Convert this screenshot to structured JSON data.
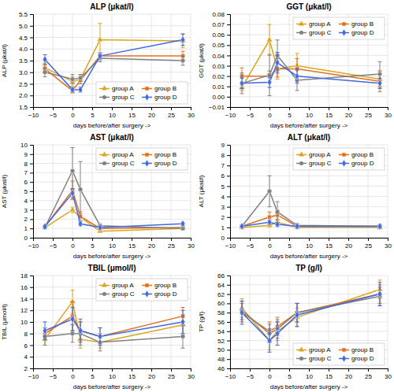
{
  "chart_data": [
    {
      "type": "line",
      "title": "ALP (μkat/l)",
      "x_label": "days before/after surgery ->",
      "y_label": "ALP (μkat/l)",
      "x": [
        -7,
        0,
        2,
        7,
        28
      ],
      "xlim": [
        -10,
        30
      ],
      "xticks": [
        {
          "value": -10,
          "label": "−10"
        },
        {
          "value": -5,
          "label": "−5"
        },
        0,
        5,
        10,
        15,
        20,
        25,
        30
      ],
      "ylim": [
        1.5,
        5.5
      ],
      "yticks": [
        1.5,
        {
          "value": 2.0,
          "label": "2.0"
        },
        2.5,
        {
          "value": 3.0,
          "label": "3.0"
        },
        3.5,
        {
          "value": 4.0,
          "label": "4.0"
        },
        4.5,
        {
          "value": 5.0,
          "label": "5.0"
        },
        5.5
      ],
      "grid": true,
      "legend": "lower right",
      "series": [
        {
          "name": "group A",
          "color": "#DAA520",
          "marker": "triangle",
          "values": [
            3.2,
            2.6,
            2.7,
            4.4,
            4.35
          ],
          "errors": [
            0.2,
            0.2,
            0.2,
            0.7,
            0.3
          ]
        },
        {
          "name": "group B",
          "color": "#E07020",
          "marker": "square",
          "values": [
            3.15,
            2.2,
            2.65,
            3.7,
            3.7
          ],
          "errors": [
            0.15,
            0.1,
            0.15,
            0.15,
            0.2
          ]
        },
        {
          "name": "group C",
          "color": "#808080",
          "marker": "circle",
          "values": [
            3.0,
            2.7,
            2.75,
            3.6,
            3.5
          ],
          "errors": [
            0.2,
            0.2,
            0.15,
            0.15,
            0.2
          ]
        },
        {
          "name": "group D",
          "color": "#4169E1",
          "marker": "diamond",
          "values": [
            3.55,
            2.25,
            2.25,
            3.7,
            4.4
          ],
          "errors": [
            0.2,
            0.1,
            0.1,
            0.1,
            0.25
          ]
        }
      ]
    },
    {
      "type": "line",
      "title": "GGT (μkat/l)",
      "x_label": "days before/after surgery ->",
      "y_label": "GGT (μkat/l)",
      "x": [
        -7,
        0,
        2,
        7,
        28
      ],
      "xlim": [
        -10,
        30
      ],
      "xticks": [
        {
          "value": -10,
          "label": "−10"
        },
        {
          "value": -5,
          "label": "−5"
        },
        0,
        5,
        10,
        15,
        20,
        25,
        30
      ],
      "ylim": [
        -0.01,
        0.08
      ],
      "yticks": [
        {
          "value": -0.01,
          "label": "−0.01"
        },
        {
          "value": 0,
          "label": "0.00"
        },
        0.01,
        0.02,
        0.03,
        0.04,
        0.05,
        0.06,
        0.07,
        0.08
      ],
      "grid": true,
      "legend": "upper right",
      "series": [
        {
          "name": "group A",
          "color": "#DAA520",
          "marker": "triangle",
          "values": [
            0.009,
            0.055,
            0.027,
            0.03,
            0.017
          ],
          "errors": [
            0.003,
            0.015,
            0.01,
            0.012,
            0.008
          ]
        },
        {
          "name": "group B",
          "color": "#E07020",
          "marker": "square",
          "values": [
            0.02,
            0.02,
            0.027,
            0.027,
            0.015
          ],
          "errors": [
            0.008,
            0.005,
            0.008,
            0.01,
            0.01
          ]
        },
        {
          "name": "group C",
          "color": "#808080",
          "marker": "circle",
          "values": [
            0.013,
            0.021,
            0.04,
            0.016,
            0.022
          ],
          "errors": [
            0.01,
            0.02,
            0.015,
            0.01,
            0.012
          ]
        },
        {
          "name": "group D",
          "color": "#4169E1",
          "marker": "diamond",
          "values": [
            0.013,
            0.014,
            0.033,
            0.02,
            0.013
          ],
          "errors": [
            0.005,
            0.005,
            0.01,
            0.007,
            0.005
          ]
        }
      ]
    },
    {
      "type": "line",
      "title": "AST (μkat/l)",
      "x_label": "days before/after surgery ->",
      "y_label": "AST (μkat/l)",
      "x": [
        -7,
        0,
        2,
        7,
        28
      ],
      "xlim": [
        -10,
        30
      ],
      "xticks": [
        {
          "value": -10,
          "label": "−10"
        },
        {
          "value": -5,
          "label": "−5"
        },
        0,
        5,
        10,
        15,
        20,
        25,
        30
      ],
      "ylim": [
        0,
        10
      ],
      "yticks": [
        0,
        1,
        2,
        3,
        4,
        5,
        6,
        7,
        8,
        9,
        10
      ],
      "grid": true,
      "legend": "upper right",
      "series": [
        {
          "name": "group A",
          "color": "#DAA520",
          "marker": "triangle",
          "values": [
            1.1,
            3.0,
            2.2,
            0.7,
            1.0
          ],
          "errors": [
            0.1,
            0.3,
            0.4,
            0.15,
            0.15
          ]
        },
        {
          "name": "group B",
          "color": "#E07020",
          "marker": "square",
          "values": [
            1.2,
            5.1,
            2.3,
            1.0,
            1.1
          ],
          "errors": [
            0.1,
            1.0,
            0.5,
            0.1,
            0.1
          ]
        },
        {
          "name": "group C",
          "color": "#808080",
          "marker": "circle",
          "values": [
            1.1,
            7.2,
            5.2,
            1.3,
            1.0
          ],
          "errors": [
            0.1,
            2.5,
            3.0,
            0.2,
            0.15
          ]
        },
        {
          "name": "group D",
          "color": "#4169E1",
          "marker": "diamond",
          "values": [
            1.2,
            4.8,
            1.5,
            1.1,
            1.5
          ],
          "errors": [
            0.1,
            0.5,
            0.2,
            0.1,
            0.15
          ]
        }
      ]
    },
    {
      "type": "line",
      "title": "ALT (μkat/l)",
      "x_label": "days before/after surgery ->",
      "y_label": "ALT (μkat/l)",
      "x": [
        -7,
        0,
        2,
        7,
        28
      ],
      "xlim": [
        -10,
        30
      ],
      "xticks": [
        {
          "value": -10,
          "label": "−10"
        },
        {
          "value": -5,
          "label": "−5"
        },
        0,
        5,
        10,
        15,
        20,
        25,
        30
      ],
      "ylim": [
        0,
        9
      ],
      "yticks": [
        0,
        1,
        2,
        3,
        4,
        5,
        6,
        7,
        8,
        9
      ],
      "grid": true,
      "legend": "upper right",
      "series": [
        {
          "name": "group A",
          "color": "#DAA520",
          "marker": "triangle",
          "values": [
            1.0,
            1.2,
            1.5,
            1.0,
            1.0
          ],
          "errors": [
            0.1,
            0.2,
            0.3,
            0.1,
            0.15
          ]
        },
        {
          "name": "group B",
          "color": "#E07020",
          "marker": "square",
          "values": [
            1.1,
            2.0,
            2.2,
            1.1,
            1.1
          ],
          "errors": [
            0.1,
            0.5,
            0.5,
            0.1,
            0.15
          ]
        },
        {
          "name": "group C",
          "color": "#808080",
          "marker": "circle",
          "values": [
            1.1,
            4.5,
            2.5,
            1.2,
            1.1
          ],
          "errors": [
            0.1,
            1.5,
            1.0,
            0.2,
            0.2
          ]
        },
        {
          "name": "group D",
          "color": "#4169E1",
          "marker": "diamond",
          "values": [
            1.1,
            1.5,
            1.3,
            1.1,
            1.1
          ],
          "errors": [
            0.1,
            0.2,
            0.2,
            0.1,
            0.1
          ]
        }
      ]
    },
    {
      "type": "line",
      "title": "TBIL (μmol/l)",
      "x_label": "days before/after surgery ->",
      "y_label": "TBIL (μmol/l)",
      "x": [
        -7,
        0,
        2,
        7,
        28
      ],
      "xlim": [
        -10,
        30
      ],
      "xticks": [
        {
          "value": -10,
          "label": "−10"
        },
        {
          "value": -5,
          "label": "−5"
        },
        0,
        5,
        10,
        15,
        20,
        25,
        30
      ],
      "ylim": [
        2,
        18
      ],
      "yticks": [
        2,
        4,
        6,
        8,
        10,
        12,
        14,
        16,
        18
      ],
      "grid": true,
      "legend": "upper right",
      "series": [
        {
          "name": "group A",
          "color": "#DAA520",
          "marker": "triangle",
          "values": [
            7.0,
            13.5,
            7.0,
            6.5,
            9.5
          ],
          "errors": [
            1.0,
            2.0,
            1.5,
            1.0,
            1.5
          ]
        },
        {
          "name": "group B",
          "color": "#E07020",
          "marker": "square",
          "values": [
            8.0,
            11.0,
            8.5,
            7.5,
            11.0
          ],
          "errors": [
            1.0,
            2.5,
            1.5,
            1.5,
            1.5
          ]
        },
        {
          "name": "group C",
          "color": "#808080",
          "marker": "circle",
          "values": [
            7.5,
            8.0,
            8.0,
            6.5,
            7.5
          ],
          "errors": [
            1.5,
            1.5,
            2.0,
            1.5,
            2.0
          ]
        },
        {
          "name": "group D",
          "color": "#4169E1",
          "marker": "diamond",
          "values": [
            8.5,
            10.5,
            8.5,
            7.5,
            10.0
          ],
          "errors": [
            1.5,
            2.0,
            2.0,
            1.5,
            2.0
          ]
        }
      ]
    },
    {
      "type": "line",
      "title": "TP (g/l)",
      "x_label": "days before/after surgery ->",
      "y_label": "TP (g/l)",
      "x": [
        -7,
        0,
        2,
        7,
        28
      ],
      "xlim": [
        -10,
        30
      ],
      "xticks": [
        {
          "value": -10,
          "label": "−10"
        },
        {
          "value": -5,
          "label": "−5"
        },
        0,
        5,
        10,
        15,
        20,
        25,
        30
      ],
      "ylim": [
        46,
        66
      ],
      "yticks": [
        46,
        48,
        50,
        52,
        54,
        56,
        58,
        60,
        62,
        64,
        66
      ],
      "grid": true,
      "legend": "lower right",
      "series": [
        {
          "name": "group A",
          "color": "#DAA520",
          "marker": "triangle",
          "values": [
            59.0,
            52.0,
            54.0,
            57.0,
            63.0
          ],
          "errors": [
            2.0,
            2.0,
            2.0,
            2.0,
            2.0
          ]
        },
        {
          "name": "group B",
          "color": "#E07020",
          "marker": "square",
          "values": [
            58.0,
            54.0,
            55.0,
            58.0,
            62.0
          ],
          "errors": [
            2.0,
            2.0,
            2.0,
            2.0,
            2.0
          ]
        },
        {
          "name": "group C",
          "color": "#808080",
          "marker": "circle",
          "values": [
            58.5,
            53.5,
            54.5,
            58.0,
            61.5
          ],
          "errors": [
            2.0,
            2.0,
            2.0,
            2.0,
            2.0
          ]
        },
        {
          "name": "group D",
          "color": "#4169E1",
          "marker": "diamond",
          "values": [
            58.0,
            52.0,
            53.5,
            57.5,
            62.0
          ],
          "errors": [
            2.5,
            2.5,
            2.5,
            2.5,
            2.5
          ]
        }
      ]
    }
  ]
}
